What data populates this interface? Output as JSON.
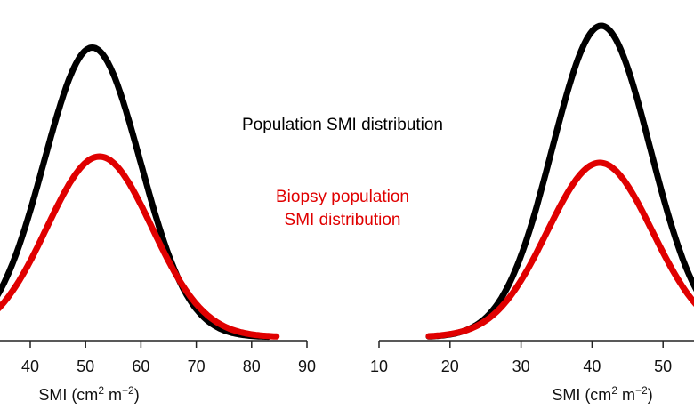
{
  "chart_data": [
    {
      "type": "line",
      "panel": "left",
      "xlabel": "SMI (cm² m⁻²)",
      "xlabel_parts": {
        "base": "SMI (cm",
        "sup1": "2",
        "mid": " m",
        "sup2": "−2",
        "end": ")"
      },
      "xticks": [
        "40",
        "50",
        "60",
        "70",
        "80",
        "90"
      ],
      "xtick_values": [
        40,
        50,
        60,
        70,
        80,
        90
      ],
      "xlim": [
        33,
        90
      ],
      "ylim": [
        0,
        1.09
      ],
      "series": [
        {
          "name": "Population SMI distribution",
          "color": "#000000",
          "mean": 51.2,
          "sd": 8.7,
          "peak": 0.93,
          "x_range": [
            30,
            83
          ]
        },
        {
          "name": "Biopsy population SMI distribution",
          "color": "#e00000",
          "mean": 52.5,
          "sd": 9.5,
          "peak": 0.58,
          "x_range": [
            30,
            84.5
          ]
        }
      ]
    },
    {
      "type": "line",
      "panel": "right",
      "xlabel": "SMI (cm² m⁻²)",
      "xlabel_parts": {
        "base": "SMI (cm",
        "sup1": "2",
        "mid": " m",
        "sup2": "−2",
        "end": ")"
      },
      "xticks": [
        "10",
        "20",
        "30",
        "40",
        "50"
      ],
      "xtick_values": [
        10,
        20,
        30,
        40,
        50
      ],
      "xlim": [
        10,
        54
      ],
      "ylim": [
        0,
        1.09
      ],
      "series": [
        {
          "name": "Population SMI distribution",
          "color": "#000000",
          "mean": 41.3,
          "sd": 6.9,
          "peak": 1.0,
          "x_range": [
            17,
            60
          ]
        },
        {
          "name": "Biopsy population SMI distribution",
          "color": "#e00000",
          "mean": 41.1,
          "sd": 7.4,
          "peak": 0.56,
          "x_range": [
            17,
            60
          ]
        }
      ]
    }
  ],
  "annotations": {
    "population": "Population SMI distribution",
    "biopsy_line1": "Biopsy population",
    "biopsy_line2": "SMI distribution",
    "black": "#000000",
    "red": "#e00000"
  }
}
